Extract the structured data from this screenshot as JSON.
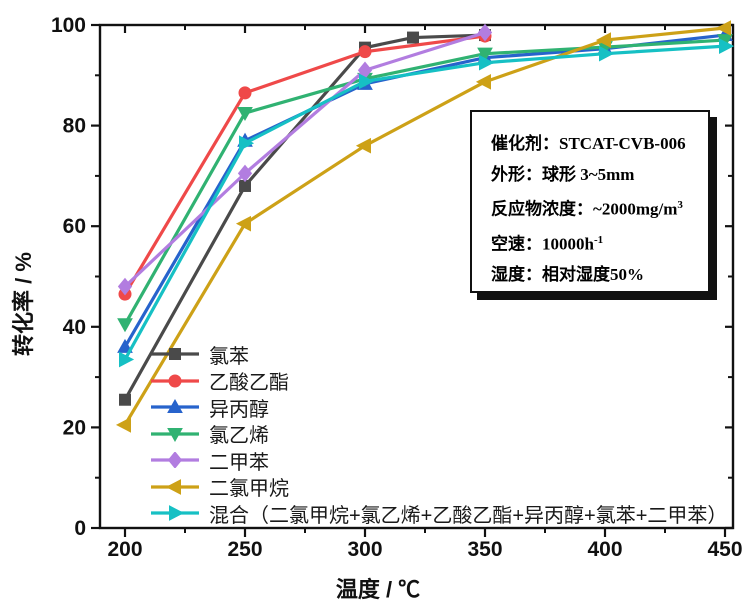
{
  "chart_data": {
    "type": "line",
    "title": "",
    "xlabel": "温度 / ℃",
    "ylabel": "转化率 / %",
    "xlim": [
      189.5,
      453.5
    ],
    "ylim": [
      0,
      100
    ],
    "x_ticks": [
      200,
      250,
      300,
      350,
      400,
      450
    ],
    "x_minor_ticks": [
      225,
      275,
      325,
      375,
      425
    ],
    "y_ticks": [
      0,
      20,
      40,
      60,
      80,
      100
    ],
    "y_minor_ticks": [
      10,
      30,
      50,
      70,
      90
    ],
    "grid": false,
    "legend_position": "inside lower-left",
    "series": [
      {
        "name": "氯苯",
        "color": "#4a4a4a",
        "marker": "square",
        "x": [
          200,
          250,
          300,
          320,
          350
        ],
        "y": [
          25.5,
          68,
          95.5,
          97.5,
          98
        ]
      },
      {
        "name": "乙酸乙酯",
        "color": "#ef4949",
        "marker": "circle",
        "x": [
          200,
          250,
          300,
          350
        ],
        "y": [
          46.5,
          86.5,
          94.7,
          97.8
        ]
      },
      {
        "name": "异丙醇",
        "color": "#2763cc",
        "marker": "triangle-up",
        "x": [
          200,
          250,
          300,
          350,
          400,
          450
        ],
        "y": [
          36,
          77,
          88.3,
          93.5,
          95.3,
          98
        ]
      },
      {
        "name": "氯乙烯",
        "color": "#30b272",
        "marker": "triangle-down",
        "x": [
          200,
          250,
          300,
          350,
          400,
          450
        ],
        "y": [
          40.5,
          82.5,
          89.3,
          94.3,
          95.6,
          97
        ]
      },
      {
        "name": "二甲苯",
        "color": "#b27de0",
        "marker": "diamond",
        "x": [
          200,
          250,
          300,
          350
        ],
        "y": [
          48,
          70.5,
          91,
          98.5
        ]
      },
      {
        "name": "二氯甲烷",
        "color": "#cda117",
        "marker": "triangle-left",
        "x": [
          200,
          250,
          300,
          350,
          400,
          450
        ],
        "y": [
          20.5,
          60.5,
          76,
          88.7,
          97,
          99.4
        ]
      },
      {
        "name": "混合（二氯甲烷+氯乙烯+乙酸乙酯+异丙醇+氯苯+二甲苯）",
        "color": "#16c0c4",
        "marker": "triangle-right",
        "x": [
          200,
          250,
          300,
          350,
          400,
          450
        ],
        "y": [
          33.5,
          76.5,
          88.8,
          92.5,
          94.3,
          95.8
        ]
      }
    ]
  },
  "axes": {
    "x_title": "温度 / ℃",
    "y_title": "转化率 / %"
  },
  "info_box": {
    "lines": [
      {
        "label": "催化剂：",
        "value": "STCAT-CVB-006",
        "sup": ""
      },
      {
        "label": "外形：",
        "value": "球形 3~5mm",
        "sup": ""
      },
      {
        "label": "反应物浓度：",
        "value": "~2000mg/m",
        "sup": "3"
      },
      {
        "label": "空速：",
        "value": "10000h",
        "sup": "-1"
      },
      {
        "label": "湿度：",
        "value": "相对湿度50%",
        "sup": ""
      }
    ]
  },
  "colors": {
    "axis": "#111111",
    "tick_label": "#111111",
    "background": "#ffffff"
  }
}
